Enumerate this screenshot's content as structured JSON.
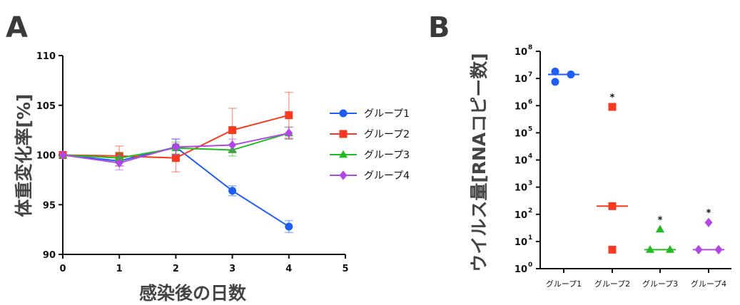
{
  "chart_data": [
    {
      "panel": "A",
      "type": "line",
      "xlabel": "感染後の日数",
      "ylabel": "体重変化率[%]",
      "xlim": [
        0,
        5
      ],
      "ylim": [
        90,
        110
      ],
      "x_ticks": [
        "0",
        "1",
        "2",
        "3",
        "4",
        "5"
      ],
      "y_ticks": [
        "90",
        "95",
        "100",
        "105",
        "110"
      ],
      "legend_position": "right",
      "x": [
        0,
        1,
        2,
        3,
        4
      ],
      "series": [
        {
          "name": "グループ1",
          "color": "#1f5ef5",
          "marker": "circle",
          "values": [
            100,
            99.4,
            100.8,
            96.4,
            92.8
          ],
          "err": [
            0,
            0.5,
            0.8,
            0.5,
            0.6
          ]
        },
        {
          "name": "グループ2",
          "color": "#f53a1f",
          "marker": "square",
          "values": [
            100,
            99.9,
            99.7,
            102.5,
            104.0
          ],
          "err": [
            0,
            1.0,
            1.4,
            2.2,
            2.3
          ]
        },
        {
          "name": "グループ3",
          "color": "#22bb22",
          "marker": "triangle",
          "values": [
            100,
            99.7,
            100.7,
            100.5,
            102.2
          ],
          "err": [
            0,
            0.5,
            0.6,
            0.6,
            0.6
          ]
        },
        {
          "name": "グループ4",
          "color": "#b347e6",
          "marker": "diamond",
          "values": [
            100,
            99.2,
            100.8,
            101.0,
            102.2
          ],
          "err": [
            0,
            0.7,
            0.8,
            0.6,
            0.6
          ]
        }
      ]
    },
    {
      "panel": "B",
      "type": "scatter",
      "ylabel": "ウイルス量[RNAコピー数]",
      "y_scale": "log10",
      "ylim": [
        1,
        100000000
      ],
      "y_ticks": [
        {
          "base": "10",
          "exp": "0"
        },
        {
          "base": "10",
          "exp": "1"
        },
        {
          "base": "10",
          "exp": "2"
        },
        {
          "base": "10",
          "exp": "3"
        },
        {
          "base": "10",
          "exp": "4"
        },
        {
          "base": "10",
          "exp": "5"
        },
        {
          "base": "10",
          "exp": "6"
        },
        {
          "base": "10",
          "exp": "7"
        },
        {
          "base": "10",
          "exp": "8"
        }
      ],
      "categories": [
        "グループ1",
        "グループ2",
        "グループ3",
        "グループ4"
      ],
      "groups": [
        {
          "name": "グループ1",
          "color": "#1f5ef5",
          "marker": "circle",
          "points": [
            18000000,
            14000000,
            7500000
          ],
          "median": 14000000,
          "star": ""
        },
        {
          "name": "グループ2",
          "color": "#f53a1f",
          "marker": "square",
          "points": [
            900000,
            200,
            5
          ],
          "median": 200,
          "star": "*"
        },
        {
          "name": "グループ3",
          "color": "#22bb22",
          "marker": "triangle",
          "points": [
            28,
            5,
            5
          ],
          "median": 5,
          "star": "*"
        },
        {
          "name": "グループ4",
          "color": "#b347e6",
          "marker": "diamond",
          "points": [
            50,
            5,
            5
          ],
          "median": 5,
          "star": "*"
        }
      ]
    }
  ]
}
